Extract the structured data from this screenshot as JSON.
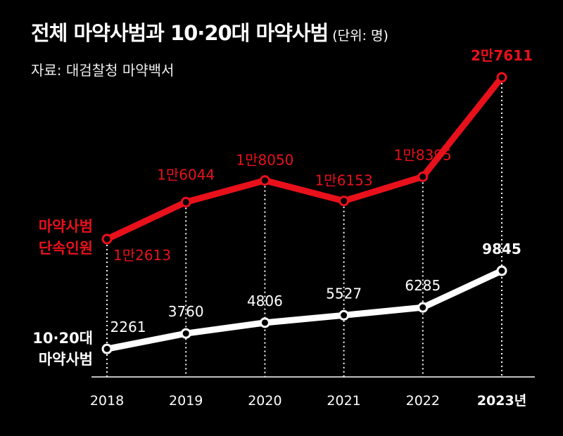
{
  "header": {
    "title": "전체 마약사범과 10·20대 마약사범",
    "unit": "(단위: 명)",
    "source": "자료: 대검찰청 마약백서"
  },
  "colors": {
    "red": "#e8111b",
    "white": "#ffffff",
    "background": "#000000"
  },
  "chart_data": {
    "type": "line",
    "title": "전체 마약사범과 10·20대 마약사범",
    "unit": "명",
    "categories": [
      "2018",
      "2019",
      "2020",
      "2021",
      "2022",
      "2023년"
    ],
    "ylim": [
      0,
      30000
    ],
    "series": [
      {
        "name_line1": "마약사범",
        "name_line2": "단속인원",
        "color": "#e8111b",
        "values": [
          12613,
          16044,
          18050,
          16153,
          18395,
          27611
        ],
        "labels": [
          "1만2613",
          "1만6044",
          "1만8050",
          "1만6153",
          "1만8395",
          "2만7611"
        ]
      },
      {
        "name_line1": "10·20대",
        "name_line2": "마약사범",
        "color": "#ffffff",
        "values": [
          2261,
          3760,
          4806,
          5527,
          6285,
          9845
        ],
        "labels": [
          "2261",
          "3760",
          "4806",
          "5527",
          "6285",
          "9845"
        ]
      }
    ]
  }
}
